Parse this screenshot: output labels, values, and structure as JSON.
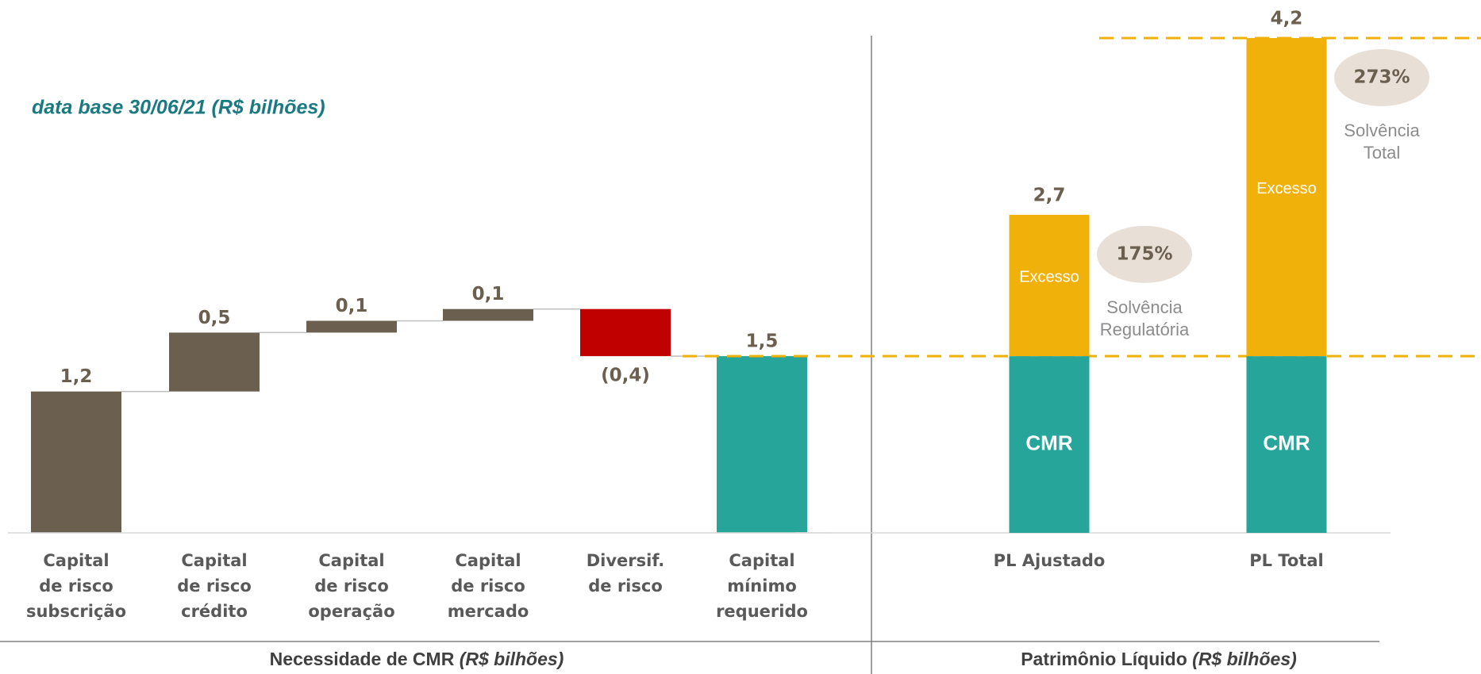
{
  "chart_data": [
    {
      "type": "waterfall",
      "title": "Necessidade de CMR",
      "title_unit": "(R$ bilhões)",
      "subtitle": "data base 30/06/21 (R$ bilhões)",
      "categories": [
        [
          "Capital",
          "de risco",
          "subscrição"
        ],
        [
          "Capital",
          "de risco",
          "crédito"
        ],
        [
          "Capital",
          "de risco",
          "operação"
        ],
        [
          "Capital",
          "de risco",
          "mercado"
        ],
        [
          "Diversif.",
          "de risco"
        ],
        [
          "Capital",
          "mínimo",
          "requerido"
        ]
      ],
      "values": [
        1.2,
        0.5,
        0.1,
        0.1,
        -0.4,
        1.5
      ],
      "value_labels": [
        "1,2",
        "0,5",
        "0,1",
        "0,1",
        "(0,4)",
        "1,5"
      ],
      "measure": [
        "relative",
        "relative",
        "relative",
        "relative",
        "relative",
        "total"
      ],
      "colors": [
        "#6b5f4f",
        "#6b5f4f",
        "#6b5f4f",
        "#6b5f4f",
        "#c00000",
        "#26a69a"
      ],
      "ylim": [
        0,
        4.2
      ]
    },
    {
      "type": "stacked_bar",
      "title": "Patrimônio Líquido",
      "title_unit": "(R$ bilhões)",
      "categories": [
        "PL Ajustado",
        "PL Total"
      ],
      "series": [
        {
          "name": "CMR",
          "color": "#26a69a",
          "values": [
            1.5,
            1.5
          ]
        },
        {
          "name": "Excesso",
          "color": "#f0b10a",
          "values": [
            1.2,
            2.7
          ]
        }
      ],
      "totals": [
        2.7,
        4.2
      ],
      "total_labels": [
        "2,7",
        "4,2"
      ],
      "annotations": [
        {
          "value": 175,
          "label": "175%",
          "text": [
            "Solvência",
            "Regulatória"
          ]
        },
        {
          "value": 273,
          "label": "273%",
          "text": [
            "Solvência",
            "Total"
          ]
        }
      ],
      "ylim": [
        0,
        4.2
      ]
    }
  ]
}
